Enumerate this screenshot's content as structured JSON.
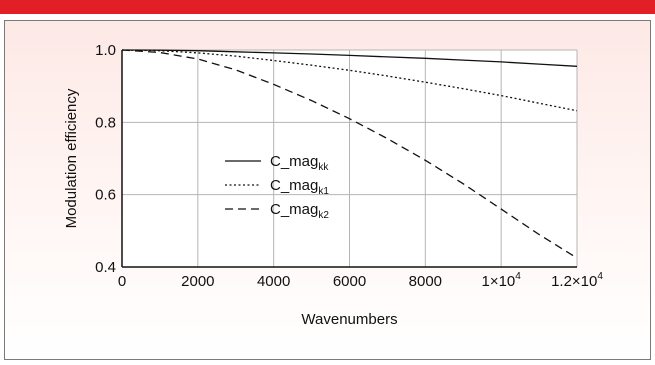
{
  "colors": {
    "top_bar": "#e21f26",
    "panel_top": "#fde9e6",
    "grid": "#b5b5b5",
    "line": "#111111"
  },
  "chart_data": {
    "type": "line",
    "xlabel": "Wavenumbers",
    "ylabel": "Modulation efficiency",
    "xlim": [
      0,
      12000
    ],
    "ylim": [
      0.4,
      1.0
    ],
    "x_ticks": [
      {
        "value": 0,
        "label": "0"
      },
      {
        "value": 2000,
        "label": "2000"
      },
      {
        "value": 4000,
        "label": "4000"
      },
      {
        "value": 6000,
        "label": "6000"
      },
      {
        "value": 8000,
        "label": "8000"
      },
      {
        "value": 10000,
        "base": "1×10",
        "exp": "4"
      },
      {
        "value": 12000,
        "base": "1.2×10",
        "exp": "4"
      }
    ],
    "y_ticks": [
      {
        "value": 0.4,
        "label": "0.4"
      },
      {
        "value": 0.6,
        "label": "0.6"
      },
      {
        "value": 0.8,
        "label": "0.8"
      },
      {
        "value": 1.0,
        "label": "1.0"
      }
    ],
    "grid": true,
    "legend_position": "center-left",
    "x": [
      0,
      1000,
      2000,
      3000,
      4000,
      5000,
      6000,
      7000,
      8000,
      9000,
      10000,
      11000,
      12000
    ],
    "series": [
      {
        "name_base": "C_mag",
        "name_sub": "kk",
        "dash": "solid",
        "values": [
          1.0,
          0.9995,
          0.998,
          0.995,
          0.992,
          0.989,
          0.985,
          0.981,
          0.977,
          0.972,
          0.967,
          0.961,
          0.955
        ]
      },
      {
        "name_base": "C_mag",
        "name_sub": "k1",
        "dash": "dotted",
        "values": [
          1.0,
          0.998,
          0.992,
          0.983,
          0.971,
          0.958,
          0.944,
          0.928,
          0.911,
          0.893,
          0.874,
          0.853,
          0.832
        ]
      },
      {
        "name_base": "C_mag",
        "name_sub": "k2",
        "dash": "dashed",
        "values": [
          1.0,
          0.993,
          0.975,
          0.945,
          0.905,
          0.86,
          0.81,
          0.755,
          0.695,
          0.63,
          0.56,
          0.49,
          0.425
        ]
      }
    ]
  }
}
